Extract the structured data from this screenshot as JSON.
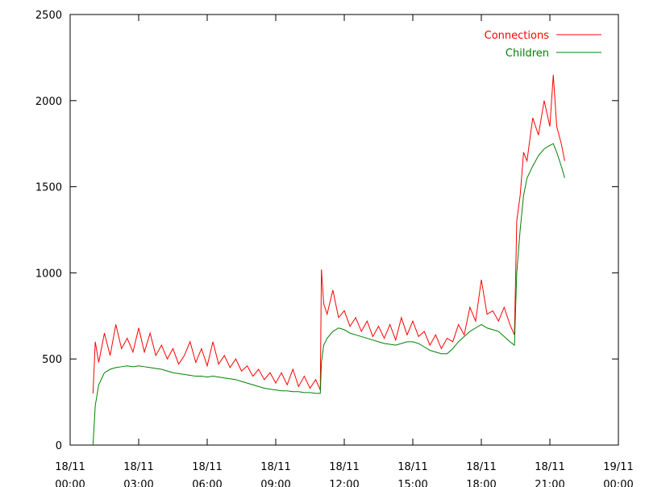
{
  "chart_data": {
    "type": "line",
    "x": [
      1.0,
      1.1,
      1.25,
      1.5,
      1.75,
      2,
      2.25,
      2.5,
      2.75,
      3,
      3.25,
      3.5,
      3.75,
      4,
      4.25,
      4.5,
      4.75,
      5,
      5.25,
      5.5,
      5.75,
      6,
      6.25,
      6.5,
      6.75,
      7,
      7.25,
      7.5,
      7.75,
      8,
      8.25,
      8.5,
      8.75,
      9,
      9.25,
      9.5,
      9.75,
      10,
      10.25,
      10.5,
      10.75,
      10.95,
      11.0,
      11.1,
      11.25,
      11.5,
      11.75,
      12,
      12.25,
      12.5,
      12.75,
      13,
      13.25,
      13.5,
      13.75,
      14,
      14.25,
      14.5,
      14.75,
      15,
      15.25,
      15.5,
      15.75,
      16,
      16.25,
      16.5,
      16.75,
      17,
      17.25,
      17.5,
      17.75,
      18,
      18.25,
      18.5,
      18.75,
      19,
      19.25,
      19.45,
      19.55,
      19.7,
      19.85,
      20,
      20.25,
      20.5,
      20.75,
      21,
      21.15,
      21.3,
      21.5,
      21.65
    ],
    "series": [
      {
        "name": "Connections",
        "color": "#ff0000",
        "values": [
          300,
          600,
          480,
          650,
          520,
          700,
          560,
          620,
          540,
          680,
          540,
          650,
          520,
          580,
          500,
          560,
          470,
          520,
          600,
          480,
          560,
          460,
          600,
          470,
          520,
          450,
          500,
          430,
          460,
          400,
          440,
          380,
          420,
          360,
          420,
          350,
          440,
          340,
          400,
          330,
          380,
          320,
          1020,
          820,
          760,
          900,
          740,
          780,
          690,
          740,
          660,
          720,
          630,
          690,
          620,
          700,
          610,
          740,
          640,
          720,
          630,
          660,
          580,
          640,
          560,
          620,
          600,
          700,
          640,
          800,
          720,
          960,
          760,
          780,
          720,
          800,
          700,
          640,
          1300,
          1450,
          1700,
          1650,
          1900,
          1800,
          2000,
          1850,
          2150,
          1850,
          1750,
          1650
        ]
      },
      {
        "name": "Children",
        "color": "#008000",
        "values": [
          0,
          230,
          350,
          420,
          440,
          450,
          455,
          460,
          455,
          460,
          455,
          450,
          445,
          440,
          430,
          420,
          415,
          410,
          405,
          400,
          400,
          395,
          400,
          395,
          390,
          385,
          380,
          370,
          360,
          350,
          340,
          330,
          325,
          320,
          315,
          315,
          310,
          310,
          305,
          305,
          300,
          300,
          480,
          580,
          620,
          660,
          680,
          670,
          650,
          640,
          630,
          620,
          610,
          600,
          590,
          585,
          580,
          590,
          600,
          600,
          590,
          570,
          550,
          540,
          530,
          530,
          560,
          600,
          630,
          660,
          680,
          700,
          680,
          670,
          660,
          630,
          600,
          580,
          1000,
          1250,
          1450,
          1550,
          1620,
          1680,
          1720,
          1740,
          1750,
          1700,
          1620,
          1550
        ]
      }
    ],
    "xlim": [
      0,
      24
    ],
    "xticks": [
      {
        "value": 0,
        "label": "18/11 00:00"
      },
      {
        "value": 3,
        "label": "18/11 03:00"
      },
      {
        "value": 6,
        "label": "18/11 06:00"
      },
      {
        "value": 9,
        "label": "18/11 09:00"
      },
      {
        "value": 12,
        "label": "18/11 12:00"
      },
      {
        "value": 15,
        "label": "18/11 15:00"
      },
      {
        "value": 18,
        "label": "18/11 18:00"
      },
      {
        "value": 21,
        "label": "18/11 21:00"
      },
      {
        "value": 24,
        "label": "19/11 00:00"
      }
    ],
    "ylim": [
      0,
      2500
    ],
    "yticks": [
      0,
      500,
      1000,
      1500,
      2000,
      2500
    ],
    "grid": false,
    "legend": "top-right"
  }
}
